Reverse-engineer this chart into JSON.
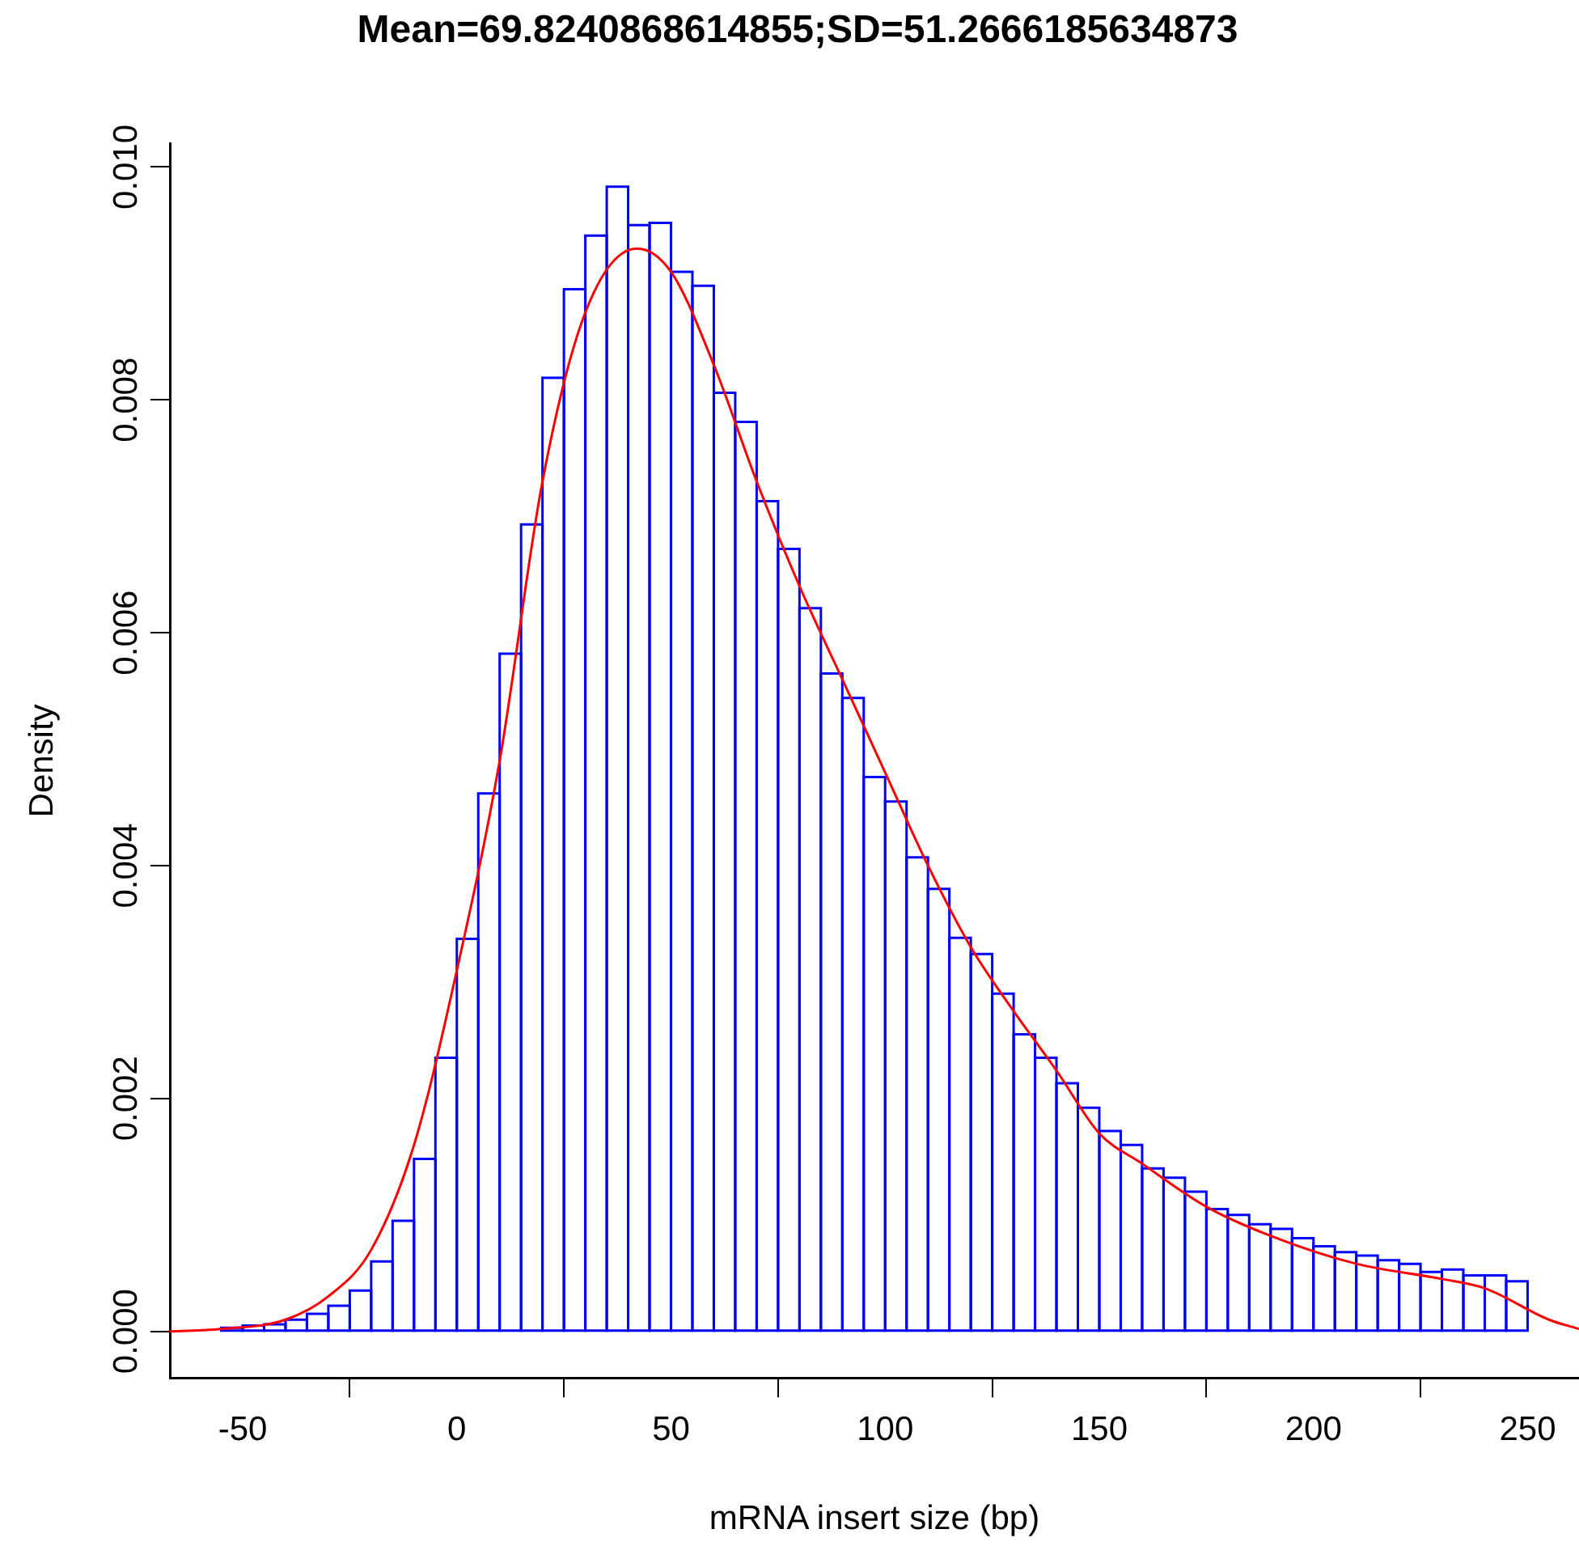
{
  "chart_data": {
    "type": "histogram",
    "title": "Mean=69.8240868614855;SD=51.2666185634873",
    "xlabel": "mRNA insert size (bp)",
    "ylabel": "Density",
    "xlim": [
      -67,
      262
    ],
    "xticks": [
      -50,
      0,
      50,
      100,
      150,
      200,
      250
    ],
    "ylim": [
      -0.0004,
      0.0102
    ],
    "yticks": [
      {
        "value": 0,
        "label": "0.000"
      },
      {
        "value": 0.002,
        "label": "0.002"
      },
      {
        "value": 0.004,
        "label": "0.004"
      },
      {
        "value": 0.006,
        "label": "0.006"
      },
      {
        "value": 0.008,
        "label": "0.008"
      },
      {
        "value": 0.01,
        "label": "0.010"
      }
    ],
    "grid": false,
    "legend": false,
    "series": [
      {
        "type": "histogram",
        "color": "#0000ff",
        "bins": [
          -55,
          -50,
          -45,
          -40,
          -35,
          -30,
          -25,
          -20,
          -15,
          -10,
          -5,
          0,
          5,
          10,
          15,
          20,
          25,
          30,
          35,
          40,
          45,
          50,
          55,
          60,
          65,
          70,
          75,
          80,
          85,
          90,
          95,
          100,
          105,
          110,
          115,
          120,
          125,
          130,
          135,
          140,
          145,
          150,
          155,
          160,
          165,
          170,
          175,
          180,
          185,
          190,
          195,
          200,
          205,
          210,
          215,
          220,
          225,
          230,
          235,
          240,
          245,
          250
        ],
        "values": [
          3e-05,
          5e-05,
          6e-05,
          0.0001,
          0.00015,
          0.00022,
          0.00035,
          0.0006,
          0.00095,
          0.00148,
          0.00235,
          0.00337,
          0.00462,
          0.00582,
          0.00693,
          0.00819,
          0.00895,
          0.00941,
          0.00983,
          0.0095,
          0.00952,
          0.0091,
          0.00898,
          0.00806,
          0.00781,
          0.00713,
          0.00672,
          0.00621,
          0.00565,
          0.00544,
          0.00476,
          0.00455,
          0.00407,
          0.0038,
          0.00338,
          0.00324,
          0.0029,
          0.00255,
          0.00235,
          0.00213,
          0.00192,
          0.00172,
          0.0016,
          0.0014,
          0.00132,
          0.0012,
          0.00105,
          0.001,
          0.00092,
          0.00088,
          0.0008,
          0.00073,
          0.00068,
          0.00065,
          0.00061,
          0.00058,
          0.00051,
          0.00053,
          0.00048,
          0.00048,
          0.00043
        ]
      },
      {
        "type": "line",
        "color": "#ff0000",
        "x": [
          -67,
          -55,
          -40,
          -30,
          -20,
          -10,
          0,
          10,
          20,
          30,
          42,
          50,
          60,
          70,
          80,
          90,
          100,
          110,
          120,
          130,
          140,
          150,
          160,
          175,
          190,
          210,
          230,
          240,
          255,
          262
        ],
        "values": [
          0,
          2e-05,
          0.0001,
          0.0003,
          0.0007,
          0.0016,
          0.0031,
          0.0049,
          0.0073,
          0.00875,
          0.0093,
          0.0091,
          0.0083,
          0.0073,
          0.0064,
          0.0056,
          0.0048,
          0.004,
          0.0033,
          0.00275,
          0.00224,
          0.0017,
          0.00144,
          0.00107,
          0.00082,
          0.00058,
          0.00045,
          0.00037,
          0.0001,
          2e-05
        ]
      }
    ]
  }
}
